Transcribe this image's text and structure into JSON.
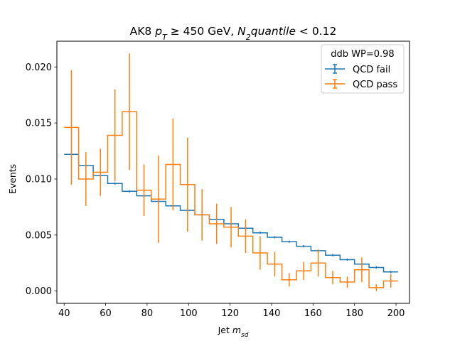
{
  "chart_data": {
    "type": "step-histogram",
    "title": "AK8 p_T ≥ 450 GeV, N_2quantile < 0.12",
    "title_parts": {
      "prefix": "AK8 ",
      "pt_main": "p",
      "pt_sub": "T",
      "mid": " ≥ 450 GeV, ",
      "n_main": "N",
      "n_sub": "2",
      "n_rest": "quantile",
      "suffix": " < 0.12"
    },
    "xlabel": "Jet m_sd",
    "xlabel_parts": {
      "main": "Jet ",
      "m": "m",
      "sub": "sd"
    },
    "ylabel": "Events",
    "xlim": [
      36.5,
      206.5
    ],
    "ylim": [
      -0.0011,
      0.0223
    ],
    "x_ticks": [
      40,
      60,
      80,
      100,
      120,
      140,
      160,
      180,
      200
    ],
    "x_tick_labels": [
      "40",
      "60",
      "80",
      "100",
      "120",
      "140",
      "160",
      "180",
      "200"
    ],
    "y_ticks": [
      0.0,
      0.005,
      0.01,
      0.015,
      0.02
    ],
    "y_tick_labels": [
      "0.000",
      "0.005",
      "0.010",
      "0.015",
      "0.020"
    ],
    "grid": false,
    "legend": {
      "title": "ddb WP=0.98",
      "placement": "upper right",
      "entries": [
        "QCD fail",
        "QCD pass"
      ]
    },
    "bin_edges": [
      40,
      47,
      54,
      61,
      68,
      75,
      82,
      89,
      96,
      103,
      110,
      117,
      124,
      131,
      138,
      145,
      152,
      159,
      166,
      173,
      180,
      187,
      194,
      201
    ],
    "series": [
      {
        "name": "QCD fail",
        "color": "#1f77b4",
        "values": [
          0.0122,
          0.0112,
          0.0103,
          0.0096,
          0.0089,
          0.0085,
          0.008,
          0.0076,
          0.0072,
          0.0068,
          0.0064,
          0.006,
          0.0056,
          0.0052,
          0.0048,
          0.0044,
          0.004,
          0.0036,
          0.0032,
          0.0028,
          0.0024,
          0.0021,
          0.0017
        ],
        "errors": [
          0.0001,
          0.0001,
          0.0001,
          0.0001,
          0.0001,
          0.0001,
          0.0001,
          0.0001,
          0.0001,
          0.0001,
          0.0001,
          0.0001,
          0.0001,
          0.0001,
          0.0001,
          0.0001,
          0.0001,
          0.0001,
          0.0001,
          0.0001,
          0.0001,
          0.0001,
          0.0001
        ]
      },
      {
        "name": "QCD pass",
        "color": "#ff7f0e",
        "values": [
          0.0146,
          0.01,
          0.0106,
          0.0139,
          0.016,
          0.009,
          0.0082,
          0.0113,
          0.0095,
          0.0068,
          0.006,
          0.0057,
          0.0049,
          0.0034,
          0.0024,
          0.001,
          0.0018,
          0.0025,
          0.0012,
          0.0008,
          0.0019,
          0.0003,
          0.0009
        ],
        "errors": [
          0.0051,
          0.0024,
          0.0021,
          0.0041,
          0.0052,
          0.0023,
          0.0039,
          0.0041,
          0.0042,
          0.0023,
          0.0018,
          0.0018,
          0.0015,
          0.0015,
          0.0011,
          0.0006,
          0.0008,
          0.0012,
          0.0006,
          0.0005,
          0.0011,
          0.0003,
          0.0006
        ]
      }
    ]
  }
}
